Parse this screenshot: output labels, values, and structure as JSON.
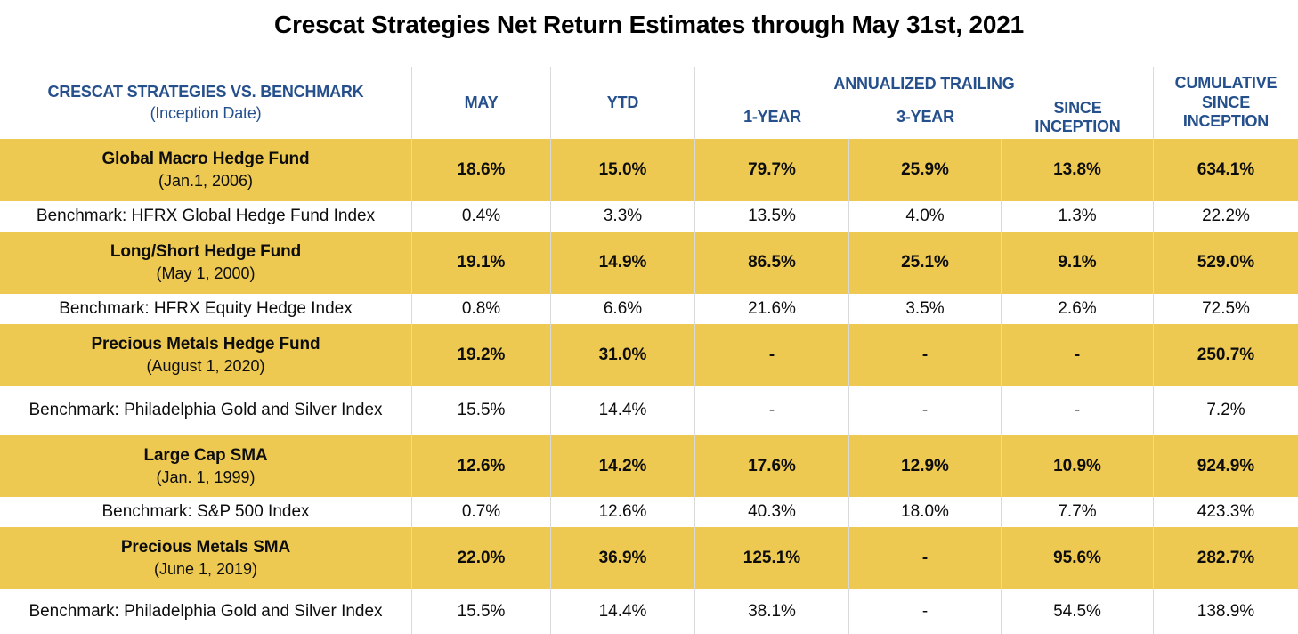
{
  "colors": {
    "row_highlight": "#EDC951",
    "header_text": "#25508C",
    "body_text": "#0D0D0D",
    "divider": "#D9D9D9",
    "background": "#FFFFFF"
  },
  "chart_data": {
    "type": "table",
    "title": "Crescat Strategies Net Return Estimates through May 31st, 2021",
    "header": {
      "strategy_title": "CRESCAT STRATEGIES VS. BENCHMARK",
      "strategy_subtitle": "(Inception Date)",
      "may": "MAY",
      "ytd": "YTD",
      "annualized_group": "ANNUALIZED TRAILING",
      "one_year": "1-YEAR",
      "three_year": "3-YEAR",
      "since_inception": "SINCE INCEPTION",
      "cumulative": "CUMULATIVE SINCE INCEPTION"
    },
    "value_columns": [
      "MAY",
      "YTD",
      "1-YEAR",
      "3-YEAR",
      "SINCE INCEPTION",
      "CUMULATIVE SINCE INCEPTION"
    ],
    "rows": [
      {
        "type": "fund",
        "name": "Global Macro Hedge Fund",
        "inception": "(Jan.1, 2006)",
        "values": [
          "18.6%",
          "15.0%",
          "79.7%",
          "25.9%",
          "13.8%",
          "634.1%"
        ]
      },
      {
        "type": "benchmark",
        "name": "Benchmark: HFRX Global Hedge Fund Index",
        "values": [
          "0.4%",
          "3.3%",
          "13.5%",
          "4.0%",
          "1.3%",
          "22.2%"
        ]
      },
      {
        "type": "fund",
        "name": "Long/Short Hedge Fund",
        "inception": "(May 1, 2000)",
        "values": [
          "19.1%",
          "14.9%",
          "86.5%",
          "25.1%",
          "9.1%",
          "529.0%"
        ]
      },
      {
        "type": "benchmark",
        "name": "Benchmark: HFRX Equity Hedge Index",
        "values": [
          "0.8%",
          "6.6%",
          "21.6%",
          "3.5%",
          "2.6%",
          "72.5%"
        ]
      },
      {
        "type": "fund",
        "name": "Precious Metals Hedge Fund",
        "inception": "(August 1, 2020)",
        "values": [
          "19.2%",
          "31.0%",
          "-",
          "-",
          "-",
          "250.7%"
        ]
      },
      {
        "type": "benchmark",
        "name": "Benchmark: Philadelphia Gold and Silver Index",
        "values": [
          "15.5%",
          "14.4%",
          "-",
          "-",
          "-",
          "7.2%"
        ]
      },
      {
        "type": "fund",
        "name": "Large Cap SMA",
        "inception": "(Jan. 1, 1999)",
        "values": [
          "12.6%",
          "14.2%",
          "17.6%",
          "12.9%",
          "10.9%",
          "924.9%"
        ]
      },
      {
        "type": "benchmark",
        "name": "Benchmark: S&P 500 Index",
        "values": [
          "0.7%",
          "12.6%",
          "40.3%",
          "18.0%",
          "7.7%",
          "423.3%"
        ]
      },
      {
        "type": "fund",
        "name": "Precious Metals SMA",
        "inception": "(June 1, 2019)",
        "values": [
          "22.0%",
          "36.9%",
          "125.1%",
          "-",
          "95.6%",
          "282.7%"
        ]
      },
      {
        "type": "benchmark",
        "name": "Benchmark: Philadelphia Gold and Silver Index",
        "values": [
          "15.5%",
          "14.4%",
          "38.1%",
          "-",
          "54.5%",
          "138.9%"
        ]
      }
    ]
  }
}
